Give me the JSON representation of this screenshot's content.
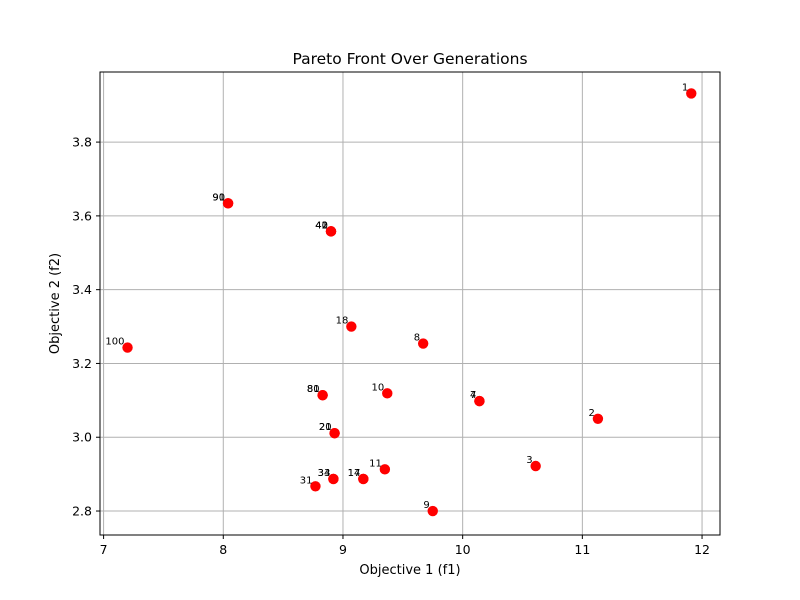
{
  "chart_data": {
    "type": "scatter",
    "title": "Pareto Front Over Generations",
    "xlabel": "Objective 1 (f1)",
    "ylabel": "Objective 2 (f2)",
    "xlim": [
      6.97,
      12.15
    ],
    "ylim": [
      2.735,
      3.99
    ],
    "xticks": [
      7,
      8,
      9,
      10,
      11,
      12
    ],
    "xtick_labels": [
      "7",
      "8",
      "9",
      "10",
      "11",
      "12"
    ],
    "yticks": [
      2.8,
      3.0,
      3.2,
      3.4,
      3.6,
      3.8
    ],
    "ytick_labels": [
      "2.8",
      "3.0",
      "3.2",
      "3.4",
      "3.6",
      "3.8"
    ],
    "grid": true,
    "marker_color": "#ff0000",
    "points": [
      {
        "x": 11.91,
        "y": 3.932,
        "label": "1"
      },
      {
        "x": 11.13,
        "y": 3.05,
        "label": "2"
      },
      {
        "x": 10.61,
        "y": 2.922,
        "label": "3"
      },
      {
        "x": 10.14,
        "y": 3.098,
        "label": "4"
      },
      {
        "x": 10.14,
        "y": 3.098,
        "label": "7"
      },
      {
        "x": 9.67,
        "y": 3.254,
        "label": "8"
      },
      {
        "x": 9.75,
        "y": 2.8,
        "label": "9"
      },
      {
        "x": 9.37,
        "y": 3.119,
        "label": "10"
      },
      {
        "x": 9.35,
        "y": 2.913,
        "label": "11"
      },
      {
        "x": 9.17,
        "y": 2.887,
        "label": "14"
      },
      {
        "x": 9.17,
        "y": 2.887,
        "label": "17"
      },
      {
        "x": 9.07,
        "y": 3.3,
        "label": "18"
      },
      {
        "x": 8.93,
        "y": 3.011,
        "label": "20"
      },
      {
        "x": 8.93,
        "y": 3.011,
        "label": "21"
      },
      {
        "x": 8.77,
        "y": 2.867,
        "label": "31"
      },
      {
        "x": 8.92,
        "y": 2.887,
        "label": "33"
      },
      {
        "x": 8.92,
        "y": 2.887,
        "label": "34"
      },
      {
        "x": 8.9,
        "y": 3.558,
        "label": "40"
      },
      {
        "x": 8.9,
        "y": 3.558,
        "label": "41"
      },
      {
        "x": 8.9,
        "y": 3.558,
        "label": "42"
      },
      {
        "x": 8.83,
        "y": 3.114,
        "label": "80"
      },
      {
        "x": 8.83,
        "y": 3.114,
        "label": "81"
      },
      {
        "x": 8.04,
        "y": 3.634,
        "label": "90"
      },
      {
        "x": 8.04,
        "y": 3.634,
        "label": "91"
      },
      {
        "x": 7.2,
        "y": 3.243,
        "label": "100"
      }
    ]
  }
}
